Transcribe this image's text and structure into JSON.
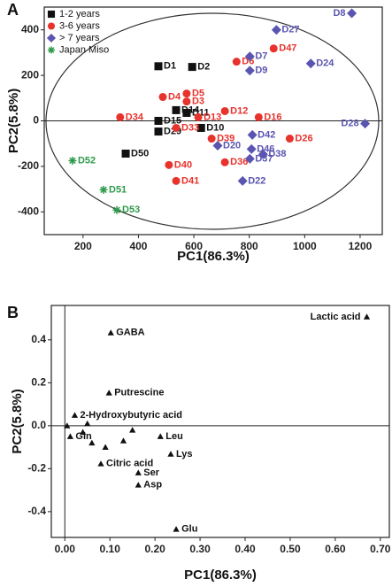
{
  "chart_data": [
    {
      "type": "scatter",
      "title": "A",
      "x_label": "PC1(86.3%)",
      "y_label": "PC2(5.8%)",
      "xlim": [
        60,
        1280
      ],
      "ylim": [
        -500,
        500
      ],
      "xticks": [
        200,
        400,
        600,
        800,
        1000,
        1200
      ],
      "yticks": [
        -400,
        -200,
        0,
        200,
        400
      ],
      "zero_lines": "y",
      "legend": "upper left",
      "series": [
        {
          "name": "1-2 years",
          "color": "#111111",
          "marker": "square",
          "labels": [
            "D1",
            "D2",
            "D14",
            "D11",
            "D15",
            "D29",
            "D10",
            "D50"
          ],
          "x": [
            472,
            594,
            536,
            574,
            472,
            472,
            626,
            354
          ],
          "values": [
            240,
            237,
            47,
            35,
            0,
            -47,
            -31,
            -144
          ]
        },
        {
          "name": "3-6 years",
          "color": "#e8322c",
          "marker": "circle",
          "labels": [
            "D6",
            "D47",
            "D4",
            "D5",
            "D3",
            "D12",
            "D34",
            "D16",
            "D13",
            "D33",
            "D39",
            "D26",
            "D40",
            "D36",
            "D41"
          ],
          "x": [
            754,
            888,
            488,
            574,
            574,
            712,
            334,
            834,
            616,
            536,
            664,
            946,
            510,
            712,
            536
          ],
          "values": [
            260,
            318,
            105,
            120,
            85,
            43,
            16,
            16,
            16,
            -31,
            -78,
            -78,
            -194,
            -182,
            -264
          ]
        },
        {
          "name": "> 7 years",
          "color": "#5a55b0",
          "marker": "diamond",
          "labels": [
            "D8",
            "D27",
            "D7",
            "D24",
            "D9",
            "D28",
            "D42",
            "D20",
            "D46",
            "D38",
            "D37",
            "D22"
          ],
          "x": [
            1170,
            898,
            802,
            1022,
            802,
            1218,
            811,
            686,
            808,
            850,
            802,
            776
          ],
          "values": [
            473,
            400,
            283,
            252,
            221,
            -12,
            -62,
            -109,
            -124,
            -147,
            -167,
            -264
          ]
        },
        {
          "name": "Japan Miso",
          "color": "#2e9a4a",
          "marker": "asterisk",
          "labels": [
            "D52",
            "D51",
            "D53"
          ],
          "x": [
            162,
            274,
            322
          ],
          "values": [
            -175,
            -303,
            -392
          ]
        }
      ]
    },
    {
      "type": "scatter",
      "title": "B",
      "x_label": "PC1(86.3%)",
      "y_label": "PC2(5.8%)",
      "xlim": [
        -0.03,
        0.72
      ],
      "ylim": [
        -0.52,
        0.56
      ],
      "xticks": [
        {
          "value": 0,
          "label": "0.00"
        },
        {
          "value": 0.1,
          "label": "0.10"
        },
        {
          "value": 0.2,
          "label": "0.20"
        },
        {
          "value": 0.3,
          "label": "0.30"
        },
        {
          "value": 0.4,
          "label": "0.40"
        },
        {
          "value": 0.5,
          "label": "0.50"
        },
        {
          "value": 0.6,
          "label": "0.60"
        },
        {
          "value": 0.7,
          "label": "0.70"
        }
      ],
      "yticks": [
        -0.4,
        -0.2,
        {
          "value": 0,
          "label": "0.0"
        },
        0.2,
        0.4
      ],
      "zero_lines": "xy",
      "series": [
        {
          "color": "#111111",
          "marker": "triangle",
          "labels": [
            "Lactic acid",
            "GABA",
            "Putrescine",
            "2-Hydroxybutyric acid",
            "Citric acid",
            "Ser",
            "Asp",
            "Lys",
            "Glu",
            "Leu",
            "Gln",
            null,
            null,
            null,
            null,
            null,
            null,
            null
          ],
          "x": [
            0.67,
            0.102,
            0.098,
            0.022,
            0.08,
            0.163,
            0.163,
            0.235,
            0.247,
            0.212,
            0.012,
            0.005,
            0.04,
            0.06,
            0.09,
            0.13,
            0.05,
            0.15
          ],
          "values": [
            0.507,
            0.433,
            0.153,
            0.049,
            -0.177,
            -0.219,
            -0.276,
            -0.132,
            -0.482,
            -0.05,
            -0.05,
            0.0,
            -0.03,
            -0.08,
            -0.1,
            -0.07,
            0.01,
            -0.02
          ]
        }
      ]
    }
  ]
}
